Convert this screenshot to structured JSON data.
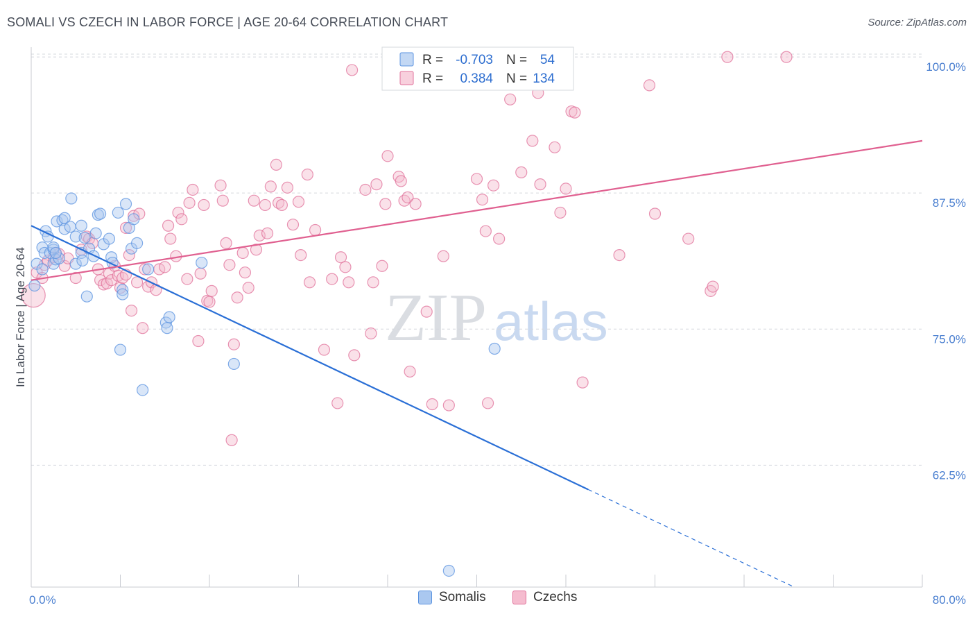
{
  "title": "SOMALI VS CZECH IN LABOR FORCE | AGE 20-64 CORRELATION CHART",
  "source": "Source: ZipAtlas.com",
  "watermark": {
    "zip": "ZIP",
    "atlas": "atlas"
  },
  "chart_data": {
    "type": "scatter",
    "ylabel": "In Labor Force | Age 20-64",
    "xlim": [
      0,
      80
    ],
    "ylim": [
      51.3,
      100.9
    ],
    "x_ticks": [
      0,
      8,
      16,
      24,
      32,
      40,
      48,
      56,
      64,
      72,
      80
    ],
    "x_tick_labels": [
      {
        "x": 0,
        "label": "0.0%"
      },
      {
        "x": 80,
        "label": "80.0%"
      }
    ],
    "y_ticks": [
      {
        "y": 100,
        "label": "100.0%"
      },
      {
        "y": 87.5,
        "label": "87.5%"
      },
      {
        "y": 75,
        "label": "75.0%"
      },
      {
        "y": 62.5,
        "label": "62.5%"
      }
    ],
    "grid": true,
    "legend_position": "top-center",
    "series": [
      {
        "name": "Somalis",
        "color": "#5b93e0",
        "fill": "#aac8f0",
        "R": "-0.703",
        "N": "54",
        "trend": {
          "x": [
            0,
            50,
            68.5
          ],
          "y": [
            84.5,
            59.3,
            51.3
          ],
          "solid_until": 50
        },
        "points": [
          [
            0.3,
            79
          ],
          [
            0.5,
            81
          ],
          [
            1,
            80.5
          ],
          [
            1,
            82.5
          ],
          [
            1.2,
            82
          ],
          [
            1.3,
            84
          ],
          [
            1.5,
            83.5
          ],
          [
            1.7,
            82
          ],
          [
            2,
            81
          ],
          [
            2,
            82.3
          ],
          [
            2,
            82.5
          ],
          [
            2.2,
            81.4
          ],
          [
            2.3,
            84.9
          ],
          [
            2.5,
            81.5
          ],
          [
            2.8,
            85
          ],
          [
            3,
            85.2
          ],
          [
            3,
            84.2
          ],
          [
            3.5,
            84.4
          ],
          [
            3.6,
            87
          ],
          [
            4,
            83.5
          ],
          [
            4,
            81
          ],
          [
            4.5,
            84.5
          ],
          [
            4.5,
            82
          ],
          [
            4.6,
            81.3
          ],
          [
            4.8,
            83.4
          ],
          [
            5,
            78
          ],
          [
            5.2,
            82.4
          ],
          [
            5.6,
            81.7
          ],
          [
            5.8,
            83.8
          ],
          [
            6,
            85.5
          ],
          [
            6.2,
            85.6
          ],
          [
            6.5,
            82.8
          ],
          [
            7,
            83.3
          ],
          [
            7.2,
            81.6
          ],
          [
            7.3,
            81.1
          ],
          [
            7.8,
            85.7
          ],
          [
            8,
            73.1
          ],
          [
            8.2,
            78.6
          ],
          [
            8.2,
            78.2
          ],
          [
            8.5,
            86.5
          ],
          [
            8.8,
            84.3
          ],
          [
            9,
            82.4
          ],
          [
            9.2,
            85.1
          ],
          [
            9.5,
            82.9
          ],
          [
            10,
            69.4
          ],
          [
            10.5,
            80.5
          ],
          [
            12.1,
            75.6
          ],
          [
            12.2,
            75.1
          ],
          [
            12.4,
            76.1
          ],
          [
            15.3,
            81.1
          ],
          [
            18.2,
            71.8
          ],
          [
            41.6,
            73.2
          ],
          [
            37.5,
            52.8
          ],
          [
            2.2,
            82
          ]
        ]
      },
      {
        "name": "Czechs",
        "color": "#e0709a",
        "fill": "#f5bccf",
        "R": "0.384",
        "N": "134",
        "trend": {
          "x": [
            0,
            80
          ],
          "y": [
            79.5,
            92.3
          ],
          "solid_until": 80
        },
        "points": [
          [
            0.2,
            78.1
          ],
          [
            0.5,
            80.2
          ],
          [
            1,
            79.7
          ],
          [
            1.2,
            80.9
          ],
          [
            1.5,
            81.3
          ],
          [
            2,
            81.6
          ],
          [
            2.2,
            82
          ],
          [
            2.5,
            81.9
          ],
          [
            3,
            80.8
          ],
          [
            3.3,
            81.5
          ],
          [
            4,
            79.7
          ],
          [
            4.5,
            82.3
          ],
          [
            5,
            83.5
          ],
          [
            5.2,
            83.3
          ],
          [
            5.5,
            82.9
          ],
          [
            6,
            80.5
          ],
          [
            6.2,
            79.5
          ],
          [
            6.5,
            79.1
          ],
          [
            6.8,
            79.2
          ],
          [
            7,
            80.1
          ],
          [
            7.2,
            79.5
          ],
          [
            7.5,
            80.8
          ],
          [
            7.8,
            79.9
          ],
          [
            8,
            78.8
          ],
          [
            8.2,
            79.7
          ],
          [
            8.5,
            80
          ],
          [
            8.5,
            84.3
          ],
          [
            8.8,
            81.8
          ],
          [
            9,
            76.7
          ],
          [
            9.2,
            85.4
          ],
          [
            9.5,
            79.3
          ],
          [
            9.7,
            85.6
          ],
          [
            10,
            75.1
          ],
          [
            10.2,
            80.5
          ],
          [
            10.5,
            78.9
          ],
          [
            10.8,
            79.3
          ],
          [
            11.2,
            78.6
          ],
          [
            11.5,
            80.5
          ],
          [
            12,
            80.7
          ],
          [
            12.3,
            84.5
          ],
          [
            12.5,
            83.3
          ],
          [
            13,
            81.7
          ],
          [
            13.2,
            85.7
          ],
          [
            13.5,
            85.1
          ],
          [
            14,
            79.6
          ],
          [
            14.2,
            86.6
          ],
          [
            14.5,
            87.8
          ],
          [
            15,
            73.9
          ],
          [
            15.2,
            80.1
          ],
          [
            15.5,
            86.4
          ],
          [
            15.8,
            77.6
          ],
          [
            16,
            77.5
          ],
          [
            16.2,
            78.5
          ],
          [
            17,
            88.2
          ],
          [
            17.2,
            86.8
          ],
          [
            17.5,
            82.9
          ],
          [
            17.8,
            80.9
          ],
          [
            18,
            64.8
          ],
          [
            18.2,
            73.6
          ],
          [
            18.5,
            77.9
          ],
          [
            19,
            82
          ],
          [
            19.2,
            80.2
          ],
          [
            19.5,
            78.8
          ],
          [
            20,
            86.8
          ],
          [
            20.2,
            82.3
          ],
          [
            20.5,
            83.6
          ],
          [
            21,
            86.4
          ],
          [
            21.2,
            83.8
          ],
          [
            21.5,
            88.1
          ],
          [
            22,
            90.1
          ],
          [
            22.2,
            86.6
          ],
          [
            22.5,
            86.4
          ],
          [
            23,
            88
          ],
          [
            23.5,
            84.6
          ],
          [
            24,
            86.7
          ],
          [
            24.2,
            81.8
          ],
          [
            24.8,
            89.2
          ],
          [
            25,
            79.3
          ],
          [
            25.5,
            84.1
          ],
          [
            26.3,
            73.1
          ],
          [
            27,
            79.6
          ],
          [
            27.5,
            68.2
          ],
          [
            27.8,
            81.6
          ],
          [
            28.2,
            80.7
          ],
          [
            28.5,
            79.3
          ],
          [
            28.8,
            98.8
          ],
          [
            29,
            72.6
          ],
          [
            30,
            87.8
          ],
          [
            30.5,
            74.6
          ],
          [
            30.7,
            79.3
          ],
          [
            31,
            88.3
          ],
          [
            31.5,
            80.8
          ],
          [
            31.8,
            86.5
          ],
          [
            32,
            90.9
          ],
          [
            33,
            89
          ],
          [
            33.2,
            88.6
          ],
          [
            33.5,
            86.8
          ],
          [
            33.8,
            87.1
          ],
          [
            34,
            71.1
          ],
          [
            34.5,
            86.5
          ],
          [
            35.5,
            76.6
          ],
          [
            36,
            68.1
          ],
          [
            37,
            81.7
          ],
          [
            37.5,
            68
          ],
          [
            39,
            100
          ],
          [
            40,
            88.8
          ],
          [
            40.5,
            86.9
          ],
          [
            40.8,
            84
          ],
          [
            41,
            68.2
          ],
          [
            41.5,
            88.2
          ],
          [
            42,
            83.3
          ],
          [
            43,
            96.1
          ],
          [
            44,
            89.4
          ],
          [
            45,
            92.3
          ],
          [
            45.5,
            96.7
          ],
          [
            45.7,
            88.3
          ],
          [
            46,
            100
          ],
          [
            47,
            91.7
          ],
          [
            47.5,
            85.7
          ],
          [
            48,
            87.9
          ],
          [
            48.5,
            95
          ],
          [
            48.8,
            94.9
          ],
          [
            49.5,
            70.1
          ],
          [
            52.8,
            81.8
          ],
          [
            55.5,
            97.4
          ],
          [
            56,
            85.6
          ],
          [
            59,
            83.3
          ],
          [
            61,
            78.5
          ],
          [
            61.2,
            78.9
          ],
          [
            62.5,
            100
          ],
          [
            67.8,
            100
          ]
        ]
      }
    ]
  }
}
